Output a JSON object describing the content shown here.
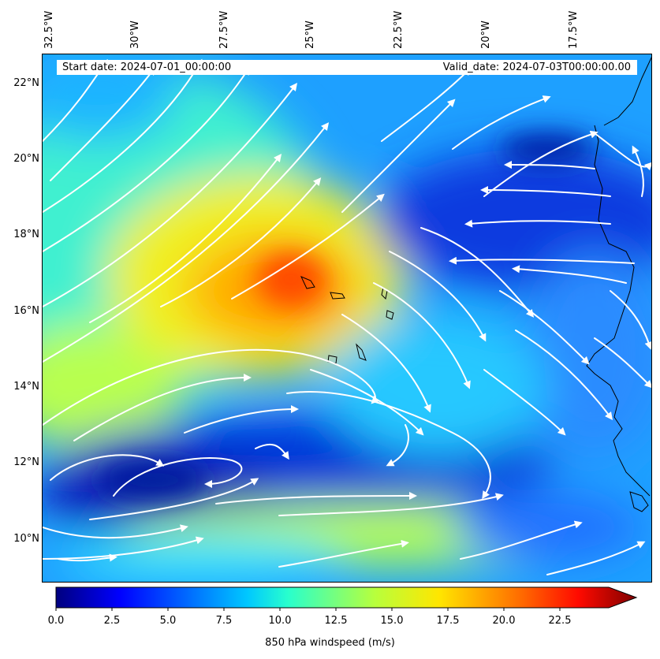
{
  "info": {
    "start_date": "Start date: 2024-07-01_00:00:00",
    "valid_date": "Valid_date: 2024-07-03T00:00:00.00"
  },
  "longitude_labels": [
    "32.5°W",
    "30°W",
    "27.5°W",
    "25°W",
    "22.5°W",
    "20°W",
    "17.5°W"
  ],
  "latitude_labels": [
    "22°N",
    "20°N",
    "18°N",
    "16°N",
    "14°N",
    "12°N",
    "10°N"
  ],
  "colorbar": {
    "label": "850 hPa windspeed (m/s)",
    "ticks": [
      "0.0",
      "2.5",
      "5.0",
      "7.5",
      "10.0",
      "12.5",
      "15.0",
      "17.5",
      "20.0",
      "22.5"
    ],
    "min": 0,
    "max": 25,
    "extend": "max",
    "colormap": "jet"
  },
  "map": {
    "extent_lon": [
      -32.5,
      -15.5
    ],
    "extent_lat": [
      8.9,
      22.8
    ],
    "field": "850 hPa wind speed with streamlines",
    "streamline_color": "#ffffff",
    "coastline_color": "#000000"
  }
}
